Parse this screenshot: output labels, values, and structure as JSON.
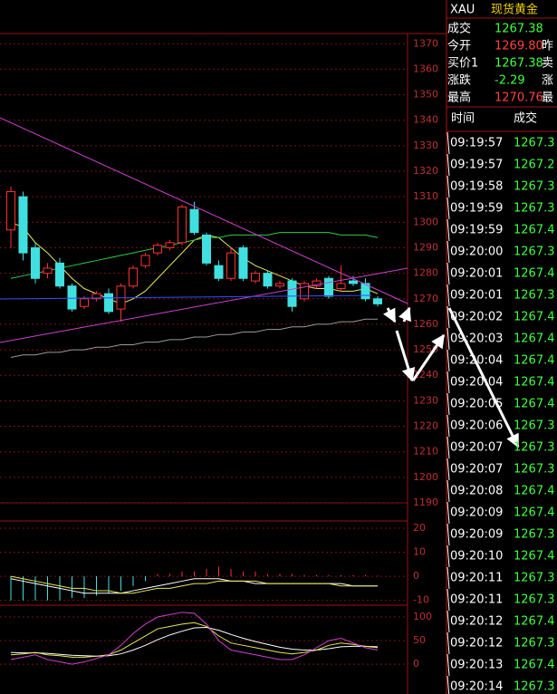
{
  "header": {
    "symbol": "XAU",
    "name": "现货黄金"
  },
  "quote": {
    "rows": [
      {
        "label": "成交",
        "value": "1267.38"
      },
      {
        "label": "今开",
        "value": "1269.80",
        "extra": "昨"
      },
      {
        "label": "买价1",
        "value": "1267.38",
        "extra": "卖"
      },
      {
        "label": "涨跌",
        "value": "-2.29",
        "extra": "涨"
      },
      {
        "label": "最高",
        "value": "1270.76",
        "extra": "最"
      }
    ]
  },
  "trades": {
    "headers": [
      "时间",
      "成交"
    ],
    "rows": [
      [
        "09:19:57",
        "1267.3"
      ],
      [
        "09:19:57",
        "1267.2"
      ],
      [
        "09:19:58",
        "1267.3"
      ],
      [
        "09:19:59",
        "1267.3"
      ],
      [
        "09:19:59",
        "1267.4"
      ],
      [
        "09:20:00",
        "1267.3"
      ],
      [
        "09:20:01",
        "1267.4"
      ],
      [
        "09:20:01",
        "1267.3"
      ],
      [
        "09:20:02",
        "1267.4"
      ],
      [
        "09:20:03",
        "1267.4"
      ],
      [
        "09:20:04",
        "1267.4"
      ],
      [
        "09:20:04",
        "1267.4"
      ],
      [
        "09:20:05",
        "1267.4"
      ],
      [
        "09:20:06",
        "1267.3"
      ],
      [
        "09:20:07",
        "1267.3"
      ],
      [
        "09:20:07",
        "1267.3"
      ],
      [
        "09:20:08",
        "1267.4"
      ],
      [
        "09:20:09",
        "1267.4"
      ],
      [
        "09:20:09",
        "1267.3"
      ],
      [
        "09:20:10",
        "1267.4"
      ],
      [
        "09:20:11",
        "1267.3"
      ],
      [
        "09:20:11",
        "1267.3"
      ],
      [
        "09:20:12",
        "1267.4"
      ],
      [
        "09:20:12",
        "1267.3"
      ],
      [
        "09:20:13",
        "1267.4"
      ],
      [
        "09:20:14",
        "1267.3"
      ]
    ]
  },
  "chart_data": [
    {
      "type": "candlestick",
      "ylim": [
        1190,
        1374
      ],
      "yticks": [
        1370,
        1360,
        1350,
        1340,
        1330,
        1320,
        1310,
        1300,
        1290,
        1280,
        1270,
        1260,
        1250,
        1240,
        1230,
        1220,
        1210,
        1200,
        1190
      ],
      "open": [
        1297,
        1310,
        1290,
        1280,
        1284,
        1275,
        1267,
        1270,
        1272,
        1266,
        1275,
        1283,
        1288,
        1290,
        1292,
        1305,
        1295,
        1283,
        1278,
        1290,
        1277,
        1280,
        1275,
        1277,
        1270,
        1275,
        1278,
        1274,
        1277,
        1276,
        1270
      ],
      "high": [
        1314,
        1312,
        1292,
        1284,
        1286,
        1276,
        1271,
        1273,
        1274,
        1276,
        1283,
        1288,
        1292,
        1293,
        1307,
        1308,
        1296,
        1285,
        1290,
        1291,
        1281,
        1281,
        1277,
        1278,
        1277,
        1278,
        1279,
        1283,
        1279,
        1278,
        1271
      ],
      "low": [
        1290,
        1285,
        1276,
        1278,
        1274,
        1265,
        1266,
        1269,
        1264,
        1261,
        1274,
        1282,
        1287,
        1289,
        1291,
        1295,
        1283,
        1277,
        1277,
        1277,
        1276,
        1274,
        1274,
        1265,
        1269,
        1274,
        1270,
        1273,
        1275,
        1269,
        1267
      ],
      "close": [
        1312,
        1288,
        1278,
        1282,
        1275,
        1266,
        1270,
        1272,
        1265,
        1275,
        1282,
        1287,
        1291,
        1292,
        1306,
        1296,
        1284,
        1278,
        1288,
        1278,
        1280,
        1275,
        1276,
        1267,
        1276,
        1277,
        1271,
        1276,
        1276,
        1270,
        1268
      ],
      "series": [
        {
          "color": "#e8e85a",
          "values": [
            1300,
            1298,
            1292,
            1288,
            1283,
            1278,
            1274,
            1272,
            1270,
            1268,
            1270,
            1273,
            1278,
            1283,
            1288,
            1293,
            1295,
            1294,
            1290,
            1286,
            1283,
            1281,
            1279,
            1277,
            1275,
            1274,
            1274,
            1273,
            1273,
            1274,
            1272
          ]
        },
        {
          "color": "#2ecc40",
          "values": [
            1278,
            1279,
            1280,
            1281,
            1282,
            1283,
            1284,
            1285,
            1286,
            1287,
            1288,
            1289,
            1290,
            1291,
            1292,
            1293,
            1294,
            1294,
            1295,
            1295,
            1295,
            1295,
            1296,
            1296,
            1296,
            1296,
            1296,
            1295,
            1295,
            1295,
            1294
          ]
        },
        {
          "color": "#9a9a9a",
          "values": [
            1247,
            1248,
            1248,
            1249,
            1249,
            1250,
            1250,
            1251,
            1251,
            1252,
            1252,
            1253,
            1253,
            1254,
            1254,
            1255,
            1255,
            1256,
            1256,
            1257,
            1257,
            1258,
            1258,
            1259,
            1259,
            1260,
            1260,
            1261,
            1261,
            1262,
            1262
          ]
        }
      ]
    },
    {
      "type": "macd",
      "ylim": [
        -12,
        23
      ],
      "yticks": [
        20,
        10,
        0,
        -10
      ],
      "values": [
        -10,
        -10,
        -10,
        -10,
        -10,
        -9,
        -9,
        -8,
        -7,
        -6,
        -4,
        -2,
        1,
        1,
        2,
        2,
        3,
        4,
        3,
        2,
        2,
        1,
        1,
        1,
        0.5,
        0.5,
        0.5,
        0.5,
        0.5,
        0.5,
        0.3
      ],
      "series": [
        {
          "color": "#ffffff",
          "values": [
            -1,
            -2,
            -3,
            -4,
            -5,
            -6,
            -7,
            -7,
            -7,
            -7,
            -6,
            -5,
            -4,
            -3,
            -2,
            -1,
            -1,
            -1,
            -2,
            -2,
            -3,
            -3,
            -3,
            -3,
            -3,
            -3,
            -3,
            -3,
            -4,
            -4,
            -4
          ]
        },
        {
          "color": "#e8e85a",
          "values": [
            0,
            -1,
            -2,
            -3,
            -4,
            -5,
            -5,
            -6,
            -6,
            -7,
            -7,
            -6,
            -5,
            -5,
            -4,
            -3,
            -3,
            -2,
            -2,
            -2,
            -2,
            -3,
            -3,
            -3,
            -3,
            -3,
            -3,
            -4,
            -4,
            -4,
            -4
          ]
        }
      ]
    },
    {
      "type": "line",
      "ylim": [
        -63,
        125
      ],
      "yticks": [
        100,
        50,
        0
      ],
      "series": [
        {
          "color": "#ffffff",
          "values": [
            25,
            24,
            24,
            23,
            21,
            19,
            18,
            17,
            18,
            22,
            30,
            40,
            52,
            62,
            70,
            77,
            78,
            72,
            63,
            55,
            48,
            42,
            36,
            32,
            30,
            30,
            33,
            37,
            38,
            38,
            37
          ]
        },
        {
          "color": "#e8e85a",
          "values": [
            20,
            22,
            25,
            20,
            18,
            15,
            15,
            17,
            20,
            30,
            45,
            60,
            75,
            80,
            85,
            88,
            80,
            60,
            45,
            40,
            35,
            30,
            25,
            22,
            25,
            30,
            40,
            45,
            42,
            38,
            35
          ]
        },
        {
          "color": "#d040d0",
          "values": [
            10,
            15,
            20,
            10,
            5,
            0,
            5,
            12,
            20,
            40,
            65,
            85,
            100,
            105,
            110,
            108,
            85,
            50,
            30,
            25,
            20,
            15,
            10,
            10,
            20,
            35,
            50,
            55,
            45,
            35,
            30
          ]
        }
      ]
    }
  ]
}
